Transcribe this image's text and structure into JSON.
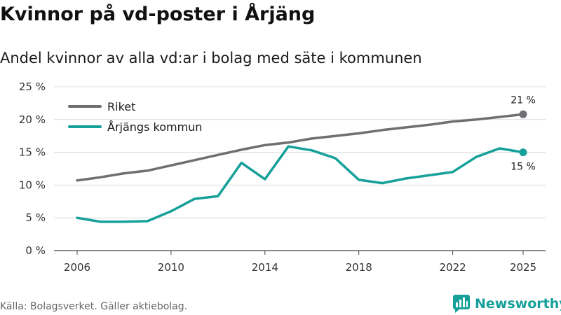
{
  "chart_data": {
    "type": "line",
    "title": "Kvinnor på vd-poster i Årjäng",
    "subtitle": "Andel kvinnor av alla vd:ar i bolag med säte i kommunen",
    "xlabel": "",
    "ylabel": "",
    "ylim": [
      0,
      25
    ],
    "yticks": [
      0,
      5,
      10,
      15,
      20,
      25
    ],
    "ytick_labels": [
      "0 %",
      "5 %",
      "10 %",
      "15 %",
      "20 %",
      "25 %"
    ],
    "xticks": [
      2006,
      2010,
      2014,
      2018,
      2022,
      2025
    ],
    "xtick_labels": [
      "2006",
      "2010",
      "2014",
      "2018",
      "2022",
      "2025"
    ],
    "x": [
      2006,
      2007,
      2008,
      2009,
      2010,
      2011,
      2012,
      2013,
      2014,
      2015,
      2016,
      2017,
      2018,
      2019,
      2020,
      2021,
      2022,
      2023,
      2024,
      2025
    ],
    "grid": true,
    "legend_position": "top-left",
    "series": [
      {
        "name": "Riket",
        "color": "#6e6e73",
        "values": [
          10.7,
          11.2,
          11.8,
          12.2,
          13.0,
          13.8,
          14.6,
          15.4,
          16.1,
          16.5,
          17.1,
          17.5,
          17.9,
          18.4,
          18.8,
          19.2,
          19.7,
          20.0,
          20.4,
          20.8
        ],
        "end_label": "21 %"
      },
      {
        "name": "Årjängs kommun",
        "color": "#16a09a",
        "values": [
          5.0,
          4.4,
          4.4,
          4.5,
          6.0,
          7.9,
          8.3,
          13.4,
          10.9,
          15.9,
          15.3,
          14.1,
          10.8,
          10.3,
          11.0,
          11.5,
          12.0,
          14.3,
          15.6,
          15.0
        ],
        "end_label": "15 %"
      }
    ]
  },
  "footer": {
    "source": "Källa: Bolagsverket. Gäller aktiebolag.",
    "brand": "Newsworthy"
  }
}
